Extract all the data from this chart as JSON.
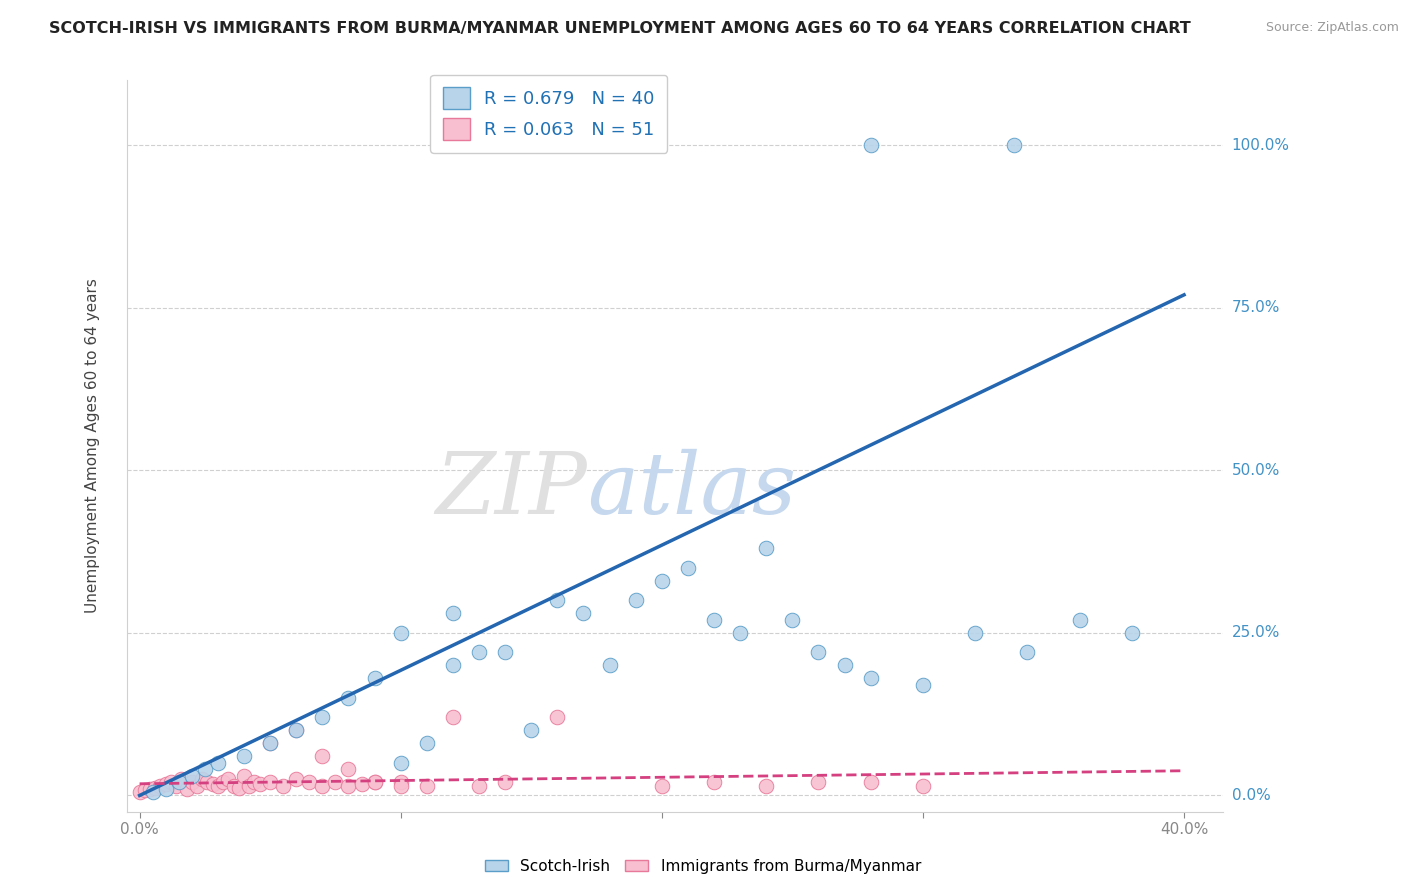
{
  "title": "SCOTCH-IRISH VS IMMIGRANTS FROM BURMA/MYANMAR UNEMPLOYMENT AMONG AGES 60 TO 64 YEARS CORRELATION CHART",
  "source": "Source: ZipAtlas.com",
  "ylabel": "Unemployment Among Ages 60 to 64 years",
  "legend1_label": "R = 0.679   N = 40",
  "legend2_label": "R = 0.063   N = 51",
  "bottom_legend1": "Scotch-Irish",
  "bottom_legend2": "Immigrants from Burma/Myanmar",
  "blue_scatter_color": "#b8d4ea",
  "blue_scatter_edge": "#5b9ec9",
  "pink_scatter_color": "#f8bfd0",
  "pink_scatter_edge": "#e8799a",
  "blue_line_color": "#2466b0",
  "pink_line_color": "#d44080",
  "grid_color": "#d0d0d0",
  "title_color": "#222222",
  "right_tick_color": "#4292c6",
  "blue_line_x0": 0.0,
  "blue_line_y0": 0.0,
  "blue_line_x1": 0.4,
  "blue_line_y1": 0.77,
  "pink_line_x0": 0.0,
  "pink_line_y0": 0.018,
  "pink_line_x1": 0.4,
  "pink_line_y1": 0.038,
  "blue_x": [
    0.005,
    0.01,
    0.015,
    0.02,
    0.025,
    0.03,
    0.04,
    0.05,
    0.06,
    0.07,
    0.08,
    0.09,
    0.1,
    0.11,
    0.12,
    0.13,
    0.14,
    0.15,
    0.16,
    0.17,
    0.18,
    0.19,
    0.2,
    0.21,
    0.22,
    0.23,
    0.24,
    0.25,
    0.26,
    0.27,
    0.28,
    0.3,
    0.32,
    0.34,
    0.36,
    0.38,
    0.28,
    0.335,
    0.1,
    0.12
  ],
  "blue_y": [
    0.005,
    0.01,
    0.02,
    0.03,
    0.04,
    0.05,
    0.06,
    0.08,
    0.1,
    0.12,
    0.15,
    0.18,
    0.05,
    0.08,
    0.2,
    0.22,
    0.22,
    0.1,
    0.3,
    0.28,
    0.2,
    0.3,
    0.33,
    0.35,
    0.27,
    0.25,
    0.38,
    0.27,
    0.22,
    0.2,
    0.18,
    0.17,
    0.25,
    0.22,
    0.27,
    0.25,
    1.0,
    1.0,
    0.25,
    0.28
  ],
  "pink_x": [
    0.0,
    0.002,
    0.004,
    0.006,
    0.008,
    0.01,
    0.012,
    0.014,
    0.016,
    0.018,
    0.02,
    0.022,
    0.024,
    0.026,
    0.028,
    0.03,
    0.032,
    0.034,
    0.036,
    0.038,
    0.04,
    0.042,
    0.044,
    0.046,
    0.05,
    0.055,
    0.06,
    0.065,
    0.07,
    0.075,
    0.08,
    0.085,
    0.09,
    0.1,
    0.11,
    0.12,
    0.13,
    0.14,
    0.16,
    0.2,
    0.22,
    0.24,
    0.26,
    0.28,
    0.3,
    0.05,
    0.06,
    0.07,
    0.08,
    0.09,
    0.1
  ],
  "pink_y": [
    0.005,
    0.008,
    0.01,
    0.012,
    0.015,
    0.018,
    0.02,
    0.015,
    0.025,
    0.01,
    0.02,
    0.015,
    0.025,
    0.02,
    0.018,
    0.015,
    0.02,
    0.025,
    0.015,
    0.012,
    0.03,
    0.015,
    0.02,
    0.018,
    0.02,
    0.015,
    0.025,
    0.02,
    0.015,
    0.02,
    0.015,
    0.018,
    0.02,
    0.02,
    0.015,
    0.12,
    0.015,
    0.02,
    0.12,
    0.015,
    0.02,
    0.015,
    0.02,
    0.02,
    0.015,
    0.08,
    0.1,
    0.06,
    0.04,
    0.02,
    0.015
  ],
  "y_ticks": [
    0.0,
    0.25,
    0.5,
    0.75,
    1.0
  ],
  "y_tick_labels_right": [
    "0.0%",
    "25.0%",
    "50.0%",
    "75.0%",
    "100.0%"
  ],
  "x_ticks": [
    0.0,
    0.1,
    0.2,
    0.3,
    0.4
  ]
}
